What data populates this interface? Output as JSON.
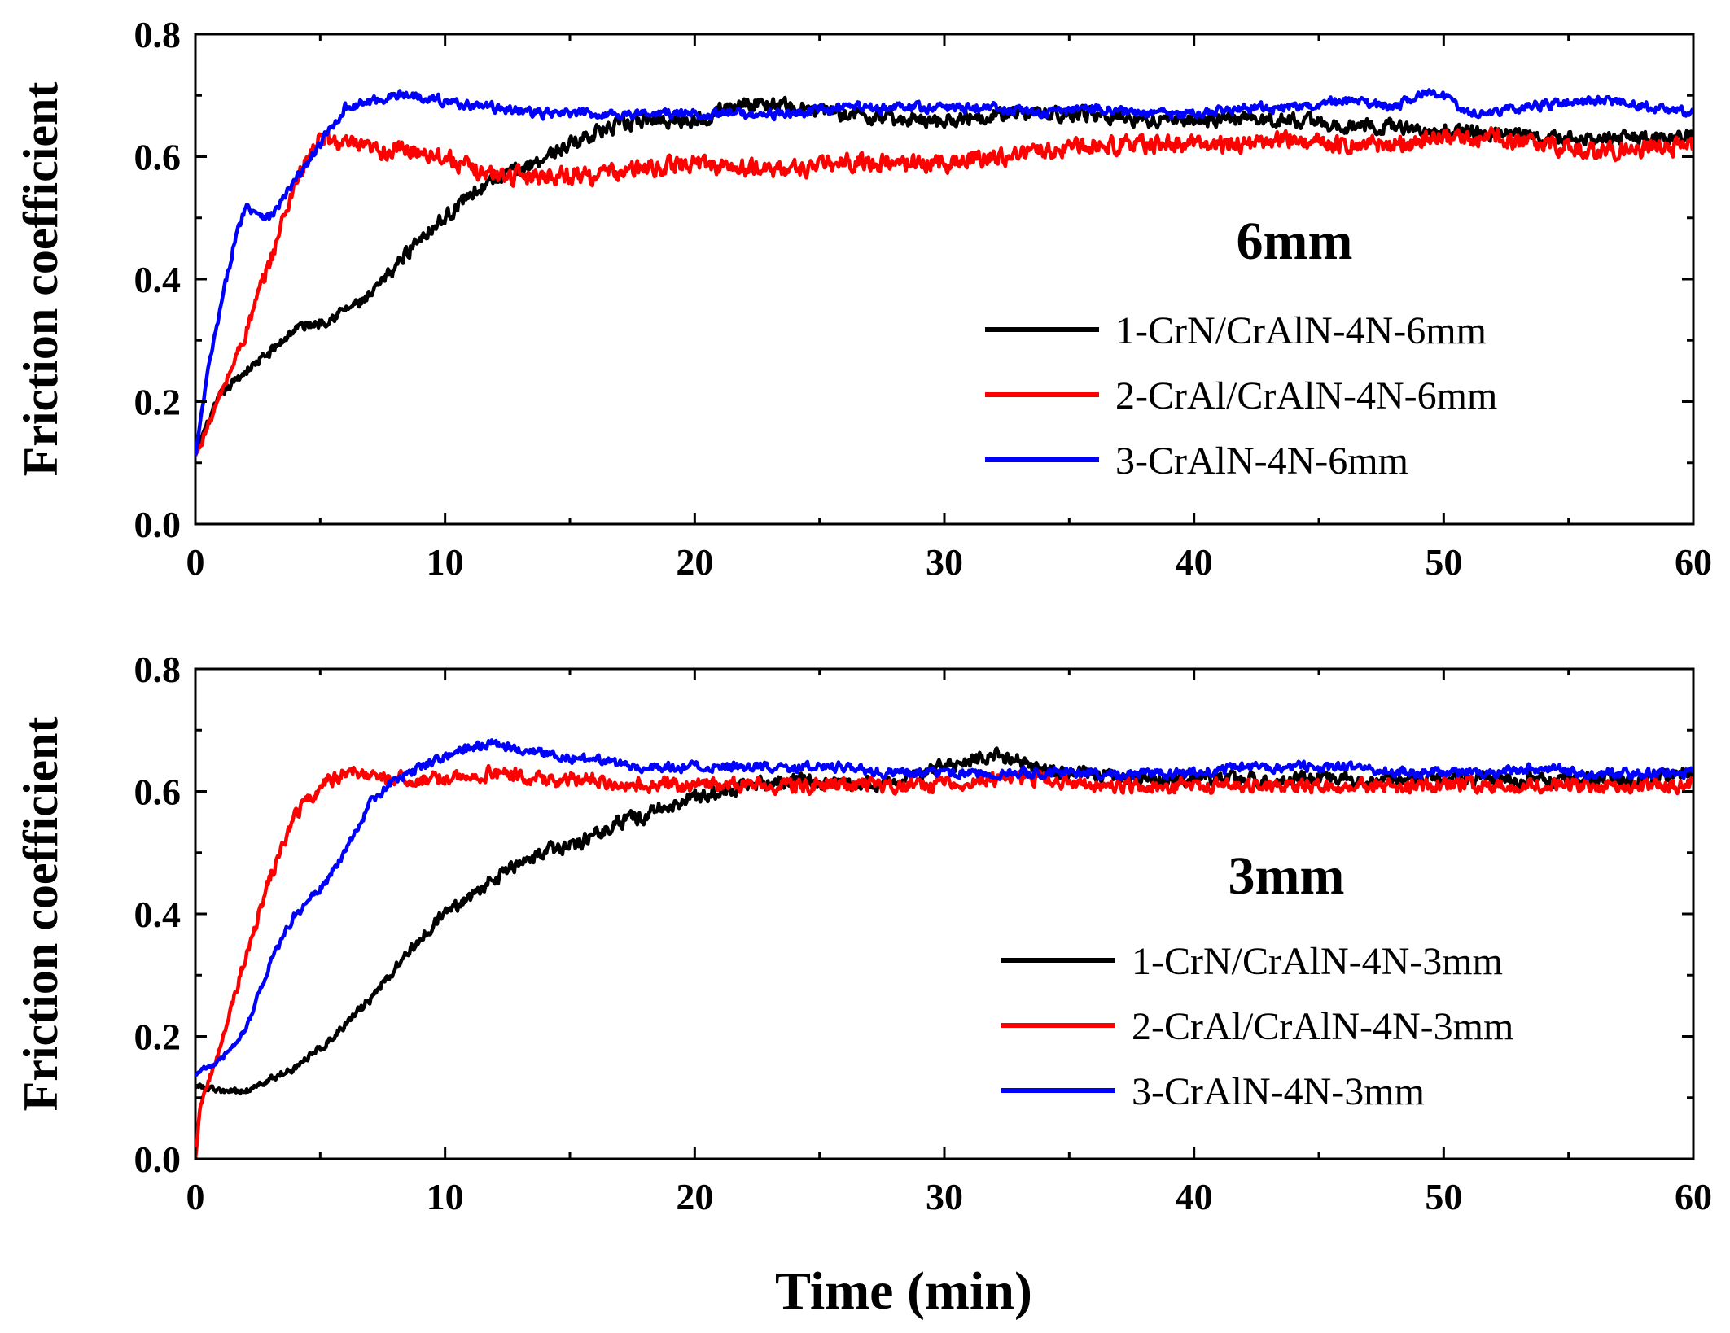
{
  "figure": {
    "xlabel": "Time (min)"
  },
  "chart_data": [
    {
      "type": "line",
      "panel_label": "6mm",
      "xlabel": "Time (min)",
      "ylabel": "Friction coefficient",
      "xlim": [
        0,
        60
      ],
      "ylim": [
        0.0,
        0.8
      ],
      "xticks": [
        0,
        10,
        20,
        30,
        40,
        50,
        60
      ],
      "yticks": [
        "0.0",
        "0.2",
        "0.4",
        "0.6",
        "0.8"
      ],
      "grid": false,
      "legend_position": "right",
      "series": [
        {
          "name": "1-CrN/CrAlN-4N-6mm",
          "color": "#000000",
          "points": [
            [
              0,
              0.12
            ],
            [
              1,
              0.21
            ],
            [
              2,
              0.25
            ],
            [
              3,
              0.28
            ],
            [
              4,
              0.32
            ],
            [
              5,
              0.33
            ],
            [
              6,
              0.35
            ],
            [
              7,
              0.37
            ],
            [
              8,
              0.42
            ],
            [
              9,
              0.47
            ],
            [
              10,
              0.5
            ],
            [
              11,
              0.54
            ],
            [
              12,
              0.56
            ],
            [
              13,
              0.58
            ],
            [
              14,
              0.6
            ],
            [
              15,
              0.62
            ],
            [
              16,
              0.64
            ],
            [
              17,
              0.65
            ],
            [
              18,
              0.66
            ],
            [
              20,
              0.66
            ],
            [
              22,
              0.69
            ],
            [
              24,
              0.68
            ],
            [
              26,
              0.67
            ],
            [
              28,
              0.66
            ],
            [
              30,
              0.66
            ],
            [
              32,
              0.67
            ],
            [
              34,
              0.67
            ],
            [
              36,
              0.67
            ],
            [
              38,
              0.66
            ],
            [
              40,
              0.66
            ],
            [
              42,
              0.66
            ],
            [
              44,
              0.66
            ],
            [
              46,
              0.65
            ],
            [
              48,
              0.65
            ],
            [
              50,
              0.64
            ],
            [
              52,
              0.64
            ],
            [
              54,
              0.63
            ],
            [
              56,
              0.63
            ],
            [
              58,
              0.63
            ],
            [
              60,
              0.63
            ]
          ],
          "noise": 0.018
        },
        {
          "name": "2-CrAl/CrAlN-4N-6mm",
          "color": "#ff0000",
          "points": [
            [
              0,
              0.11
            ],
            [
              1,
              0.21
            ],
            [
              2,
              0.31
            ],
            [
              3,
              0.43
            ],
            [
              4,
              0.56
            ],
            [
              5,
              0.63
            ],
            [
              6,
              0.62
            ],
            [
              7,
              0.61
            ],
            [
              8,
              0.61
            ],
            [
              9,
              0.61
            ],
            [
              10,
              0.6
            ],
            [
              11,
              0.58
            ],
            [
              12,
              0.57
            ],
            [
              14,
              0.57
            ],
            [
              16,
              0.57
            ],
            [
              18,
              0.58
            ],
            [
              20,
              0.59
            ],
            [
              22,
              0.58
            ],
            [
              24,
              0.58
            ],
            [
              26,
              0.59
            ],
            [
              28,
              0.59
            ],
            [
              30,
              0.59
            ],
            [
              32,
              0.6
            ],
            [
              34,
              0.61
            ],
            [
              36,
              0.62
            ],
            [
              38,
              0.62
            ],
            [
              40,
              0.62
            ],
            [
              42,
              0.62
            ],
            [
              44,
              0.63
            ],
            [
              46,
              0.62
            ],
            [
              48,
              0.62
            ],
            [
              50,
              0.63
            ],
            [
              52,
              0.63
            ],
            [
              54,
              0.62
            ],
            [
              56,
              0.61
            ],
            [
              58,
              0.61
            ],
            [
              60,
              0.62
            ]
          ],
          "noise": 0.022
        },
        {
          "name": "3-CrAlN-4N-6mm",
          "color": "#0000ff",
          "points": [
            [
              0,
              0.11
            ],
            [
              0.5,
              0.25
            ],
            [
              1,
              0.35
            ],
            [
              1.5,
              0.45
            ],
            [
              2,
              0.52
            ],
            [
              3,
              0.5
            ],
            [
              4,
              0.56
            ],
            [
              5,
              0.62
            ],
            [
              6,
              0.68
            ],
            [
              7,
              0.69
            ],
            [
              8,
              0.7
            ],
            [
              9,
              0.7
            ],
            [
              10,
              0.69
            ],
            [
              12,
              0.68
            ],
            [
              14,
              0.67
            ],
            [
              16,
              0.67
            ],
            [
              18,
              0.67
            ],
            [
              20,
              0.67
            ],
            [
              22,
              0.67
            ],
            [
              24,
              0.67
            ],
            [
              26,
              0.68
            ],
            [
              28,
              0.68
            ],
            [
              30,
              0.68
            ],
            [
              32,
              0.68
            ],
            [
              34,
              0.67
            ],
            [
              36,
              0.68
            ],
            [
              38,
              0.67
            ],
            [
              40,
              0.67
            ],
            [
              42,
              0.68
            ],
            [
              44,
              0.68
            ],
            [
              46,
              0.69
            ],
            [
              48,
              0.68
            ],
            [
              49.5,
              0.71
            ],
            [
              51,
              0.67
            ],
            [
              53,
              0.68
            ],
            [
              55,
              0.69
            ],
            [
              57,
              0.69
            ],
            [
              60,
              0.67
            ]
          ],
          "noise": 0.012
        }
      ]
    },
    {
      "type": "line",
      "panel_label": "3mm",
      "xlabel": "Time (min)",
      "ylabel": "Friction coefficient",
      "xlim": [
        0,
        60
      ],
      "ylim": [
        0.0,
        0.8
      ],
      "xticks": [
        0,
        10,
        20,
        30,
        40,
        50,
        60
      ],
      "yticks": [
        "0.0",
        "0.2",
        "0.4",
        "0.6",
        "0.8"
      ],
      "grid": false,
      "legend_position": "right",
      "series": [
        {
          "name": "1-CrN/CrAlN-4N-3mm",
          "color": "#000000",
          "points": [
            [
              0,
              0.12
            ],
            [
              1,
              0.11
            ],
            [
              2,
              0.11
            ],
            [
              3,
              0.13
            ],
            [
              4,
              0.15
            ],
            [
              5,
              0.18
            ],
            [
              6,
              0.22
            ],
            [
              7,
              0.26
            ],
            [
              8,
              0.31
            ],
            [
              9,
              0.36
            ],
            [
              10,
              0.4
            ],
            [
              11,
              0.43
            ],
            [
              12,
              0.46
            ],
            [
              13,
              0.48
            ],
            [
              14,
              0.5
            ],
            [
              15,
              0.51
            ],
            [
              16,
              0.53
            ],
            [
              17,
              0.55
            ],
            [
              18,
              0.56
            ],
            [
              19,
              0.58
            ],
            [
              20,
              0.59
            ],
            [
              22,
              0.61
            ],
            [
              24,
              0.62
            ],
            [
              26,
              0.61
            ],
            [
              28,
              0.62
            ],
            [
              30,
              0.64
            ],
            [
              32,
              0.66
            ],
            [
              33,
              0.65
            ],
            [
              34,
              0.63
            ],
            [
              36,
              0.63
            ],
            [
              38,
              0.62
            ],
            [
              40,
              0.62
            ],
            [
              42,
              0.62
            ],
            [
              44,
              0.62
            ],
            [
              46,
              0.62
            ],
            [
              48,
              0.62
            ],
            [
              50,
              0.62
            ],
            [
              52,
              0.62
            ],
            [
              54,
              0.62
            ],
            [
              56,
              0.62
            ],
            [
              58,
              0.62
            ],
            [
              60,
              0.63
            ]
          ],
          "noise": 0.018
        },
        {
          "name": "2-CrAl/CrAlN-4N-3mm",
          "color": "#ff0000",
          "points": [
            [
              0,
              0.0
            ],
            [
              0.2,
              0.09
            ],
            [
              1,
              0.18
            ],
            [
              2,
              0.33
            ],
            [
              3,
              0.46
            ],
            [
              4,
              0.56
            ],
            [
              5,
              0.61
            ],
            [
              6,
              0.63
            ],
            [
              7,
              0.63
            ],
            [
              8,
              0.62
            ],
            [
              10,
              0.62
            ],
            [
              12,
              0.63
            ],
            [
              14,
              0.62
            ],
            [
              16,
              0.62
            ],
            [
              18,
              0.61
            ],
            [
              20,
              0.61
            ],
            [
              22,
              0.61
            ],
            [
              24,
              0.61
            ],
            [
              26,
              0.61
            ],
            [
              28,
              0.61
            ],
            [
              30,
              0.61
            ],
            [
              32,
              0.62
            ],
            [
              34,
              0.62
            ],
            [
              36,
              0.61
            ],
            [
              38,
              0.61
            ],
            [
              40,
              0.61
            ],
            [
              42,
              0.61
            ],
            [
              44,
              0.61
            ],
            [
              46,
              0.61
            ],
            [
              48,
              0.61
            ],
            [
              50,
              0.61
            ],
            [
              52,
              0.61
            ],
            [
              54,
              0.61
            ],
            [
              56,
              0.61
            ],
            [
              58,
              0.61
            ],
            [
              60,
              0.61
            ]
          ],
          "noise": 0.018
        },
        {
          "name": "3-CrAlN-4N-3mm",
          "color": "#0000ff",
          "points": [
            [
              0,
              0.14
            ],
            [
              1,
              0.16
            ],
            [
              2,
              0.21
            ],
            [
              3,
              0.32
            ],
            [
              4,
              0.4
            ],
            [
              5,
              0.44
            ],
            [
              6,
              0.5
            ],
            [
              7,
              0.58
            ],
            [
              8,
              0.62
            ],
            [
              9,
              0.64
            ],
            [
              10,
              0.66
            ],
            [
              11,
              0.67
            ],
            [
              12,
              0.68
            ],
            [
              13,
              0.67
            ],
            [
              14,
              0.66
            ],
            [
              16,
              0.65
            ],
            [
              18,
              0.64
            ],
            [
              20,
              0.64
            ],
            [
              22,
              0.64
            ],
            [
              24,
              0.64
            ],
            [
              26,
              0.64
            ],
            [
              28,
              0.63
            ],
            [
              30,
              0.63
            ],
            [
              32,
              0.63
            ],
            [
              34,
              0.63
            ],
            [
              36,
              0.63
            ],
            [
              38,
              0.63
            ],
            [
              40,
              0.63
            ],
            [
              42,
              0.64
            ],
            [
              44,
              0.64
            ],
            [
              46,
              0.64
            ],
            [
              48,
              0.63
            ],
            [
              50,
              0.63
            ],
            [
              52,
              0.63
            ],
            [
              54,
              0.64
            ],
            [
              56,
              0.63
            ],
            [
              58,
              0.63
            ],
            [
              60,
              0.63
            ]
          ],
          "noise": 0.012
        }
      ]
    }
  ]
}
